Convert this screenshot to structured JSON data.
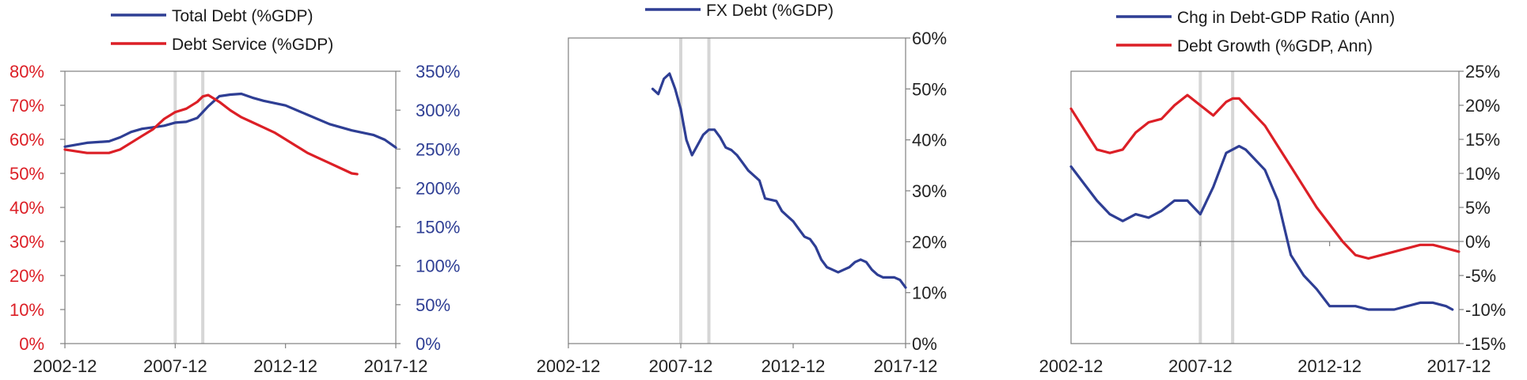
{
  "colors": {
    "blue": "#2e3e94",
    "red": "#dc1f26",
    "axis": "#808080",
    "band": "#d6d6d6",
    "text": "#222222"
  },
  "chart_data": [
    {
      "type": "line",
      "dual_axis": true,
      "legend": [
        "Total Debt (%GDP)",
        "Debt Service (%GDP)"
      ],
      "legend_position": "top",
      "x_tick_labels": [
        "2002-12",
        "2007-12",
        "2012-12",
        "2017-12"
      ],
      "xlim": [
        "2002-12",
        "2017-12"
      ],
      "left_axis": {
        "ylim": [
          0,
          80
        ],
        "ticks": [
          0,
          10,
          20,
          30,
          40,
          50,
          60,
          70,
          80
        ],
        "tick_labels": [
          "0%",
          "10%",
          "20%",
          "30%",
          "40%",
          "50%",
          "60%",
          "70%",
          "80%"
        ],
        "color": "red"
      },
      "right_axis": {
        "ylim": [
          0,
          350
        ],
        "ticks": [
          0,
          50,
          100,
          150,
          200,
          250,
          300,
          350
        ],
        "tick_labels": [
          "0%",
          "50%",
          "100%",
          "150%",
          "200%",
          "250%",
          "300%",
          "350%"
        ],
        "color": "blue"
      },
      "shaded_dates": [
        "2007-12",
        "2009-03"
      ],
      "series": [
        {
          "name": "Total Debt (%GDP)",
          "axis": "right",
          "color": "blue",
          "x": [
            "2002-12",
            "2003-12",
            "2004-12",
            "2005-06",
            "2005-12",
            "2006-06",
            "2006-12",
            "2007-06",
            "2007-12",
            "2008-06",
            "2008-12",
            "2009-06",
            "2009-12",
            "2010-06",
            "2010-12",
            "2011-06",
            "2011-12",
            "2012-12",
            "2013-12",
            "2014-12",
            "2015-12",
            "2016-12",
            "2017-06",
            "2017-12"
          ],
          "values": [
            253,
            258,
            260,
            265,
            272,
            276,
            278,
            280,
            284,
            285,
            290,
            305,
            318,
            320,
            321,
            316,
            312,
            306,
            294,
            282,
            274,
            268,
            262,
            252
          ]
        },
        {
          "name": "Debt Service (%GDP)",
          "axis": "left",
          "color": "red",
          "x": [
            "2002-12",
            "2003-12",
            "2004-12",
            "2005-06",
            "2005-12",
            "2006-06",
            "2006-12",
            "2007-06",
            "2007-12",
            "2008-06",
            "2008-12",
            "2009-03",
            "2009-06",
            "2009-12",
            "2010-06",
            "2010-12",
            "2011-06",
            "2011-12",
            "2012-06",
            "2012-12",
            "2013-06",
            "2013-12",
            "2014-06",
            "2014-12",
            "2015-06",
            "2015-12",
            "2016-03"
          ],
          "values": [
            57,
            56,
            56,
            57,
            59,
            61,
            63,
            66,
            68,
            69,
            71,
            72.6,
            73,
            71,
            68.5,
            66.5,
            65,
            63.5,
            62,
            60,
            58,
            56,
            54.5,
            53,
            51.5,
            50,
            49.8
          ]
        }
      ]
    },
    {
      "type": "line",
      "legend": [
        "FX Debt (%GDP)"
      ],
      "legend_position": "top",
      "x_tick_labels": [
        "2002-12",
        "2007-12",
        "2012-12",
        "2017-12"
      ],
      "xlim": [
        "2002-12",
        "2017-12"
      ],
      "right_axis": {
        "ylim": [
          0,
          60
        ],
        "ticks": [
          0,
          10,
          20,
          30,
          40,
          50,
          60
        ],
        "tick_labels": [
          "0%",
          "10%",
          "20%",
          "30%",
          "40%",
          "50%",
          "60%"
        ],
        "color": "text"
      },
      "shaded_dates": [
        "2007-12",
        "2009-03"
      ],
      "series": [
        {
          "name": "FX Debt (%GDP)",
          "color": "blue",
          "x": [
            "2006-09",
            "2006-12",
            "2007-03",
            "2007-06",
            "2007-09",
            "2007-12",
            "2008-03",
            "2008-06",
            "2008-09",
            "2008-12",
            "2009-03",
            "2009-06",
            "2009-09",
            "2009-12",
            "2010-03",
            "2010-06",
            "2010-09",
            "2010-12",
            "2011-06",
            "2011-09",
            "2012-03",
            "2012-06",
            "2012-09",
            "2012-12",
            "2013-03",
            "2013-06",
            "2013-09",
            "2013-12",
            "2014-03",
            "2014-06",
            "2014-09",
            "2014-12",
            "2015-03",
            "2015-06",
            "2015-09",
            "2015-12",
            "2016-03",
            "2016-06",
            "2016-09",
            "2016-12",
            "2017-03",
            "2017-06",
            "2017-09",
            "2017-12"
          ],
          "values": [
            50,
            49,
            52,
            53,
            50,
            46,
            40,
            37,
            39,
            41,
            42,
            42,
            40.5,
            38.5,
            38,
            37,
            35.5,
            34,
            32,
            28.5,
            28,
            26,
            25,
            24,
            22.5,
            21,
            20.5,
            19,
            16.5,
            15,
            14.5,
            14,
            14.5,
            15,
            16,
            16.5,
            16,
            14.5,
            13.5,
            13,
            13,
            13,
            12.5,
            11
          ]
        }
      ]
    },
    {
      "type": "line",
      "legend": [
        "Chg in Debt-GDP Ratio (Ann)",
        "Debt Growth (%GDP, Ann)"
      ],
      "legend_position": "top",
      "x_tick_labels": [
        "2002-12",
        "2007-12",
        "2012-12",
        "2017-12"
      ],
      "xlim": [
        "2002-12",
        "2017-12"
      ],
      "right_axis": {
        "ylim": [
          -15,
          25
        ],
        "ticks": [
          -15,
          -10,
          -5,
          0,
          5,
          10,
          15,
          20,
          25
        ],
        "tick_labels": [
          "-15%",
          "-10%",
          "-5%",
          "0%",
          "5%",
          "10%",
          "15%",
          "20%",
          "25%"
        ],
        "color": "text"
      },
      "shaded_dates": [
        "2007-12",
        "2009-03"
      ],
      "series": [
        {
          "name": "Chg in Debt-GDP Ratio (Ann)",
          "color": "blue",
          "x": [
            "2002-12",
            "2003-06",
            "2003-12",
            "2004-06",
            "2004-12",
            "2005-06",
            "2005-12",
            "2006-06",
            "2006-12",
            "2007-06",
            "2007-12",
            "2008-06",
            "2008-12",
            "2009-06",
            "2009-09",
            "2009-12",
            "2010-06",
            "2010-12",
            "2011-06",
            "2011-12",
            "2012-06",
            "2012-12",
            "2013-06",
            "2013-12",
            "2014-06",
            "2014-12",
            "2015-06",
            "2015-12",
            "2016-06",
            "2016-12",
            "2017-06",
            "2017-09"
          ],
          "values": [
            11,
            8.5,
            6,
            4,
            3,
            4,
            3.5,
            4.5,
            6,
            6,
            4,
            8,
            13,
            14,
            13.5,
            12.5,
            10.5,
            6,
            -2,
            -5,
            -7,
            -9.5,
            -9.5,
            -9.5,
            -10,
            -10,
            -10,
            -9.5,
            -9,
            -9,
            -9.5,
            -10
          ]
        },
        {
          "name": "Debt Growth (%GDP, Ann)",
          "color": "red",
          "x": [
            "2002-12",
            "2003-06",
            "2003-12",
            "2004-06",
            "2004-12",
            "2005-06",
            "2005-12",
            "2006-06",
            "2006-12",
            "2007-06",
            "2007-12",
            "2008-06",
            "2008-12",
            "2009-03",
            "2009-06",
            "2009-12",
            "2010-06",
            "2010-12",
            "2011-06",
            "2011-12",
            "2012-06",
            "2012-12",
            "2013-06",
            "2013-12",
            "2014-06",
            "2014-12",
            "2015-06",
            "2015-12",
            "2016-06",
            "2016-12",
            "2017-06",
            "2017-12"
          ],
          "values": [
            19.5,
            16.5,
            13.5,
            13,
            13.5,
            16,
            17.5,
            18,
            20,
            21.5,
            20,
            18.5,
            20.5,
            21,
            21,
            19,
            17,
            14,
            11,
            8,
            5,
            2.5,
            0,
            -2,
            -2.5,
            -2,
            -1.5,
            -1,
            -0.5,
            -0.5,
            -1,
            -1.5
          ]
        }
      ]
    }
  ]
}
